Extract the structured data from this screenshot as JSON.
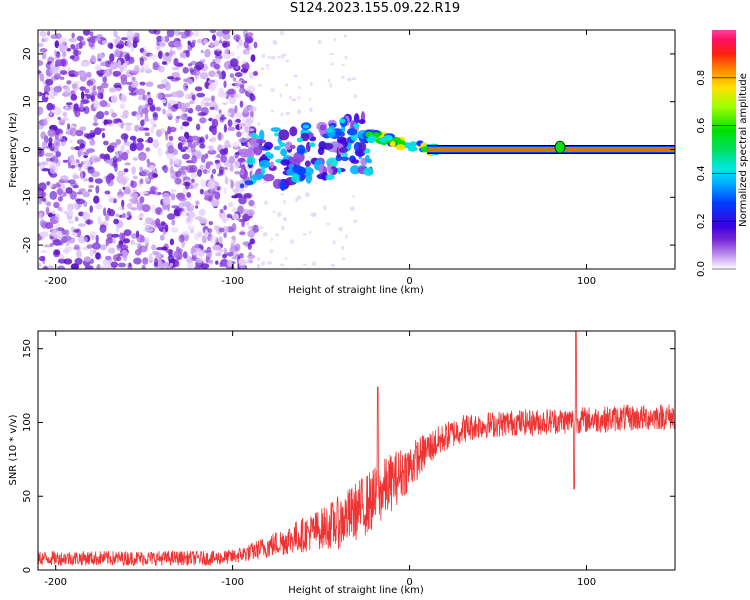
{
  "title": "S124.2023.155.09.22.R19",
  "colors": {
    "snr_line": "#ee3333",
    "spectral_colormap": [
      "#ffffff",
      "#c9a0f0",
      "#7a2bd6",
      "#3b00e0",
      "#0040ff",
      "#00e0e0",
      "#00e000",
      "#ffe000",
      "#ff4000",
      "#ff1060"
    ],
    "tone_outline": "#000000"
  },
  "chart_data": [
    {
      "type": "heatmap",
      "xlabel": "Height of straight line (km)",
      "ylabel": "Frequency (Hz)",
      "xlim": [
        -210,
        150
      ],
      "ylim": [
        -25,
        25
      ],
      "x_ticks": [
        -200,
        -100,
        0,
        100
      ],
      "y_ticks": [
        -20,
        -10,
        0,
        10,
        20
      ],
      "x_tick_labels": [
        "-200",
        "-100",
        "0",
        "100"
      ],
      "y_tick_labels": [
        "-20",
        "-10",
        "0",
        "10",
        "20"
      ],
      "grid": false,
      "colorbar": {
        "label": "Normalized spectral amplitude",
        "range": [
          0.0,
          1.0
        ],
        "ticks": [
          0.0,
          0.2,
          0.4,
          0.6,
          0.8
        ],
        "tick_labels": [
          "0.0",
          "0.2",
          "0.4",
          "0.6",
          "0.8"
        ],
        "colormap": "gist_ncar-like (white, purple, blue, cyan, green, yellow, red, pink)"
      },
      "features": [
        {
          "name": "noise_region",
          "x_range": [
            -210,
            -95
          ],
          "freq_range": [
            -25,
            25
          ],
          "amplitude": 0.1
        },
        {
          "name": "transition_blobs",
          "x_range": [
            -95,
            -20
          ],
          "freq_range": [
            -15,
            10
          ],
          "amplitude": 0.25
        },
        {
          "name": "tone_onset",
          "x_range": [
            -25,
            15
          ],
          "freq_range": [
            -1,
            4
          ],
          "amplitude": 0.5
        },
        {
          "name": "carrier_tone",
          "x_range": [
            10,
            150
          ],
          "frequency": 0.0,
          "amplitude": 0.95
        }
      ]
    },
    {
      "type": "line",
      "xlabel": "Height of straight line (km)",
      "ylabel": "SNR (10 * v/v)",
      "xlim": [
        -210,
        150
      ],
      "ylim": [
        0,
        162
      ],
      "x_ticks": [
        -200,
        -100,
        0,
        100
      ],
      "y_ticks": [
        0,
        50,
        100,
        150
      ],
      "x_tick_labels": [
        "-200",
        "-100",
        "0",
        "100"
      ],
      "y_tick_labels": [
        "0",
        "50",
        "100",
        "150"
      ],
      "grid": false,
      "series": [
        {
          "x": [
            -210,
            -190,
            -170,
            -150,
            -130,
            -110,
            -100,
            -90,
            -80,
            -70,
            -60,
            -50,
            -40,
            -30,
            -20,
            -10,
            0,
            10,
            20,
            30,
            40,
            50,
            60,
            70,
            80,
            90,
            100,
            110,
            120,
            130,
            140,
            150
          ],
          "y": [
            8,
            8,
            8,
            8,
            8,
            8,
            9,
            12,
            16,
            20,
            24,
            28,
            32,
            40,
            48,
            60,
            70,
            82,
            90,
            96,
            98,
            99,
            100,
            100,
            101,
            101,
            102,
            102,
            103,
            103,
            104,
            104
          ],
          "noise_amplitude": [
            5,
            5,
            5,
            5,
            5,
            5,
            5,
            6,
            8,
            10,
            12,
            14,
            18,
            20,
            22,
            20,
            16,
            12,
            10,
            10,
            9,
            9,
            9,
            9,
            9,
            9,
            9,
            9,
            9,
            9,
            9,
            9
          ],
          "spikes": [
            {
              "x": -18,
              "y": 124
            },
            {
              "x": 94,
              "y": 162
            },
            {
              "x": 93,
              "y": 55
            }
          ]
        }
      ]
    }
  ]
}
